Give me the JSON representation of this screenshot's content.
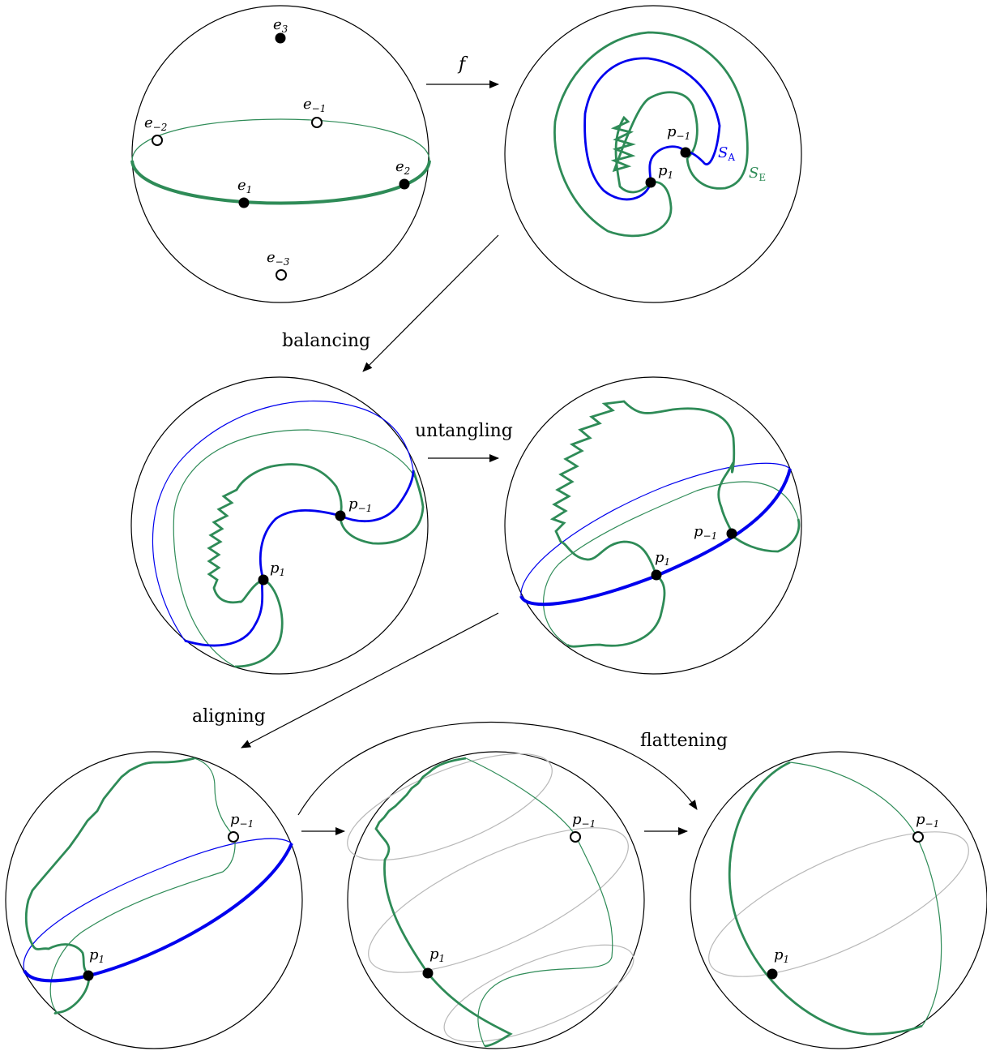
{
  "colors": {
    "green": "#2e8b57",
    "blue": "#0000ee",
    "gray": "#b8b8b8",
    "black": "#000000"
  },
  "panel1": {
    "e3": "e",
    "e3_sub": "3",
    "e_m1": "e",
    "e_m1_sub": "−1",
    "e_m2": "e",
    "e_m2_sub": "−2",
    "e1": "e",
    "e1_sub": "1",
    "e2": "e",
    "e2_sub": "2",
    "e_m3": "e",
    "e_m3_sub": "−3"
  },
  "arrow_f": "f",
  "panel2": {
    "p_m1": "p",
    "p_m1_sub": "−1",
    "p1": "p",
    "p1_sub": "1",
    "S_A": "S",
    "S_A_sub": "A",
    "S_E": "S",
    "S_E_sub": "E"
  },
  "steps": {
    "balancing": "balancing",
    "untangling": "untangling",
    "aligning": "aligning",
    "flattening": "flattening"
  },
  "panel3": {
    "p_m1": "p",
    "p_m1_sub": "−1",
    "p1": "p",
    "p1_sub": "1"
  },
  "panel4": {
    "p_m1": "p",
    "p_m1_sub": "−1",
    "p1": "p",
    "p1_sub": "1"
  },
  "panel5": {
    "p_m1": "p",
    "p_m1_sub": "−1",
    "p1": "p",
    "p1_sub": "1"
  },
  "panel6": {
    "p_m1": "p",
    "p_m1_sub": "−1",
    "p1": "p",
    "p1_sub": "1"
  },
  "panel7": {
    "p_m1": "p",
    "p_m1_sub": "−1",
    "p1": "p",
    "p1_sub": "1"
  }
}
